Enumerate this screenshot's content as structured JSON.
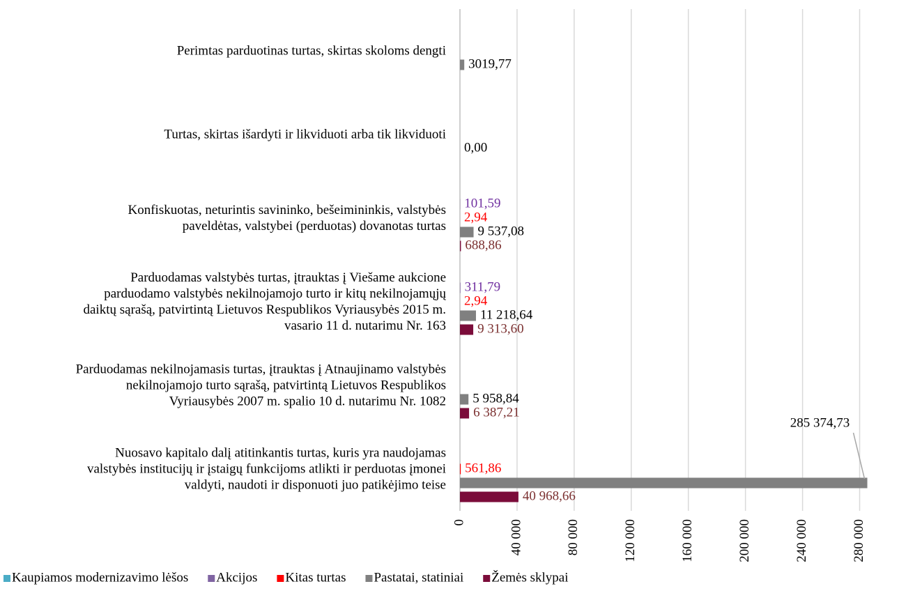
{
  "chart_data": {
    "type": "bar",
    "orientation": "horizontal",
    "categories": [
      "Perimtas parduotinas turtas, skirtas skoloms dengti",
      "Turtas, skirtas išardyti ir likviduoti arba tik likviduoti",
      "Konfiskuotas, neturintis savininko, bešeimininkis, valstybės paveldėtas, valstybei (perduotas) dovanotas turtas",
      "Parduodamas valstybės turtas, įtrauktas į Viešame aukcione parduodamo valstybės nekilnojamojo turto ir kitų nekilnojamųjų daiktų sąrašą, patvirtintą Lietuvos Respublikos Vyriausybės 2015 m. vasario 11 d. nutarimu Nr. 163",
      "Parduodamas nekilnojamasis turtas, įtrauktas į Atnaujinamo valstybės nekilnojamojo turto sąrašą, patvirtintą Lietuvos Respublikos Vyriausybės 2007 m. spalio 10 d. nutarimu Nr. 1082",
      "Nuosavo kapitalo dalį atitinkantis turtas, kuris yra naudojamas valstybės institucijų ir įstaigų funkcijoms atlikti ir perduotas įmonei valdyti, naudoti ir disponuoti juo patikėjimo teise"
    ],
    "series": [
      {
        "name": "Kaupiamos modernizavimo lėšos",
        "color": "#4bacc6",
        "label_color": "#4bacc6",
        "values": [
          null,
          null,
          null,
          null,
          null,
          null
        ],
        "value_labels": [
          null,
          null,
          null,
          null,
          null,
          null
        ]
      },
      {
        "name": "Akcijos",
        "color": "#8064a2",
        "label_color": "#7030a0",
        "values": [
          null,
          null,
          101.59,
          311.79,
          null,
          null
        ],
        "value_labels": [
          null,
          null,
          "101,59",
          "311,79",
          null,
          null
        ]
      },
      {
        "name": "Kitas turtas",
        "color": "#ff0000",
        "label_color": "#ff0000",
        "values": [
          null,
          null,
          2.94,
          2.94,
          null,
          561.86
        ],
        "value_labels": [
          null,
          null,
          "2,94",
          "2,94",
          null,
          "561,86"
        ]
      },
      {
        "name": "Pastatai, statiniai",
        "color": "#808080",
        "label_color": "#000000",
        "values": [
          3019.77,
          0,
          9537.08,
          11218.64,
          5958.84,
          285374.73
        ],
        "value_labels": [
          "3019,77",
          "0,00",
          "9 537,08",
          "11 218,64",
          "5 958,84",
          "285 374,73"
        ]
      },
      {
        "name": "Žemės sklypai",
        "color": "#7b0c3a",
        "label_color": "#7b3030",
        "values": [
          null,
          null,
          688.86,
          9313.6,
          6387.21,
          40968.66
        ],
        "value_labels": [
          null,
          null,
          "688,86",
          "9 313,60",
          "6 387,21",
          "40 968,66"
        ]
      }
    ],
    "xlim": [
      0,
      290000
    ],
    "xticks": [
      0,
      {
        "value": 40000,
        "label": "40 000"
      },
      {
        "value": 80000,
        "label": "80 000"
      },
      {
        "value": 120000,
        "label": "120 000"
      },
      {
        "value": 160000,
        "label": "160 000"
      },
      {
        "value": 200000,
        "label": "200 000"
      },
      {
        "value": 240000,
        "label": "240 000"
      },
      {
        "value": 280000,
        "label": "280 000"
      }
    ],
    "grid": true,
    "legend": "bottom"
  }
}
